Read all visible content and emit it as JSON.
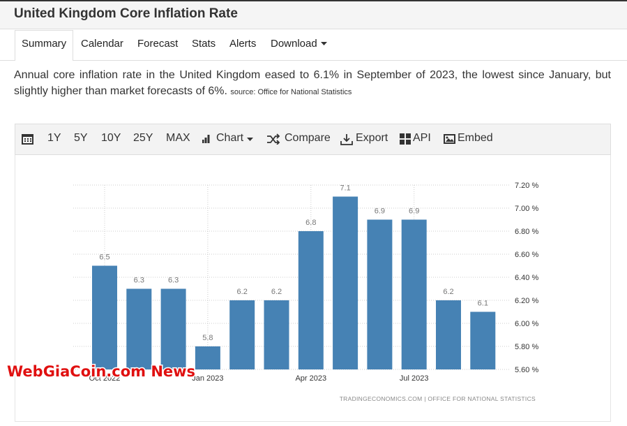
{
  "header": {
    "title": "United Kingdom Core Inflation Rate"
  },
  "tabs": [
    "Summary",
    "Calendar",
    "Forecast",
    "Stats",
    "Alerts",
    "Download"
  ],
  "description": {
    "text": "Annual core inflation rate in the United Kingdom eased to 6.1% in September of 2023, the lowest since January, but slightly higher than market forecasts of 6%.",
    "source": "source: Office for National Statistics"
  },
  "toolbar": [
    "1Y",
    "5Y",
    "10Y",
    "25Y",
    "MAX",
    "Chart",
    "Compare",
    "Export",
    "API",
    "Embed"
  ],
  "chart_data": {
    "type": "bar",
    "categories": [
      "Oct 2022",
      null,
      null,
      "Jan 2023",
      null,
      null,
      "Apr 2023",
      null,
      null,
      "Jul 2023",
      null,
      null
    ],
    "values": [
      6.5,
      6.3,
      6.3,
      5.8,
      6.2,
      6.2,
      6.8,
      7.1,
      6.9,
      6.9,
      6.2,
      6.1
    ],
    "color": "#4682b4",
    "ylim": [
      5.6,
      7.2
    ],
    "yticks": [
      {
        "value": 5.6,
        "label": "5.60 %"
      },
      {
        "value": 5.8,
        "label": "5.80 %"
      },
      {
        "value": 6.0,
        "label": "6.00 %"
      },
      {
        "value": 6.2,
        "label": "6.20 %"
      },
      {
        "value": 6.4,
        "label": "6.40 %"
      },
      {
        "value": 6.6,
        "label": "6.60 %"
      },
      {
        "value": 6.8,
        "label": "6.80 %"
      },
      {
        "value": 7.0,
        "label": "7.00 %"
      },
      {
        "value": 7.2,
        "label": "7.20 %"
      }
    ],
    "grid": true,
    "attribution": "TRADINGECONOMICS.COM  |  OFFICE FOR NATIONAL STATISTICS"
  },
  "watermark": "WebGiaCoin.com News"
}
